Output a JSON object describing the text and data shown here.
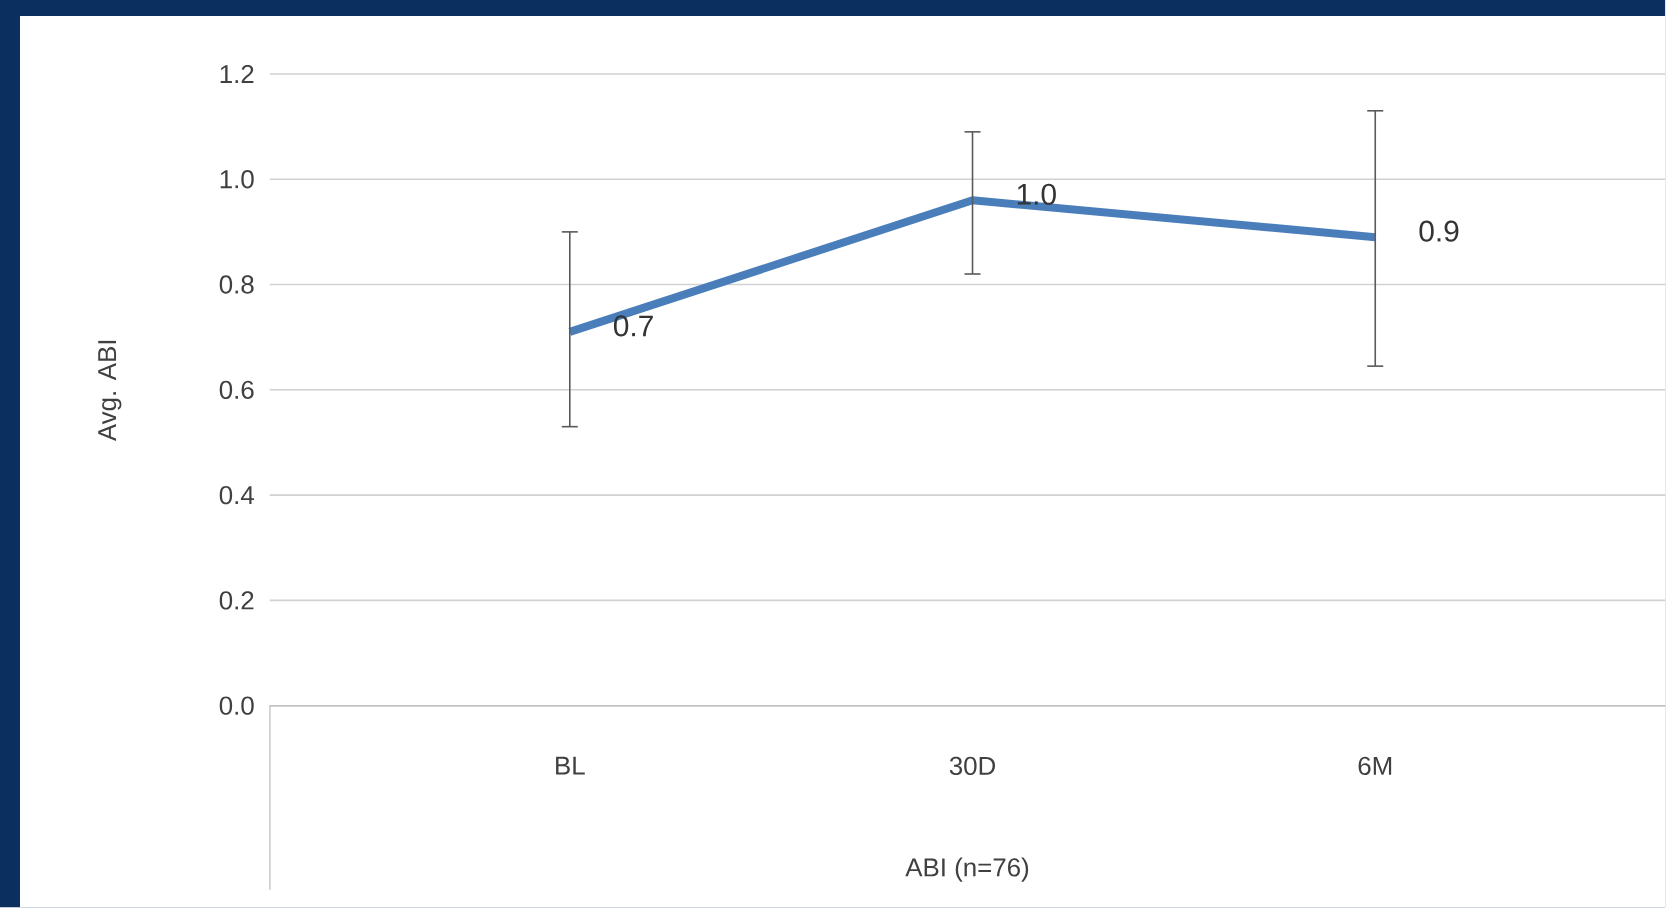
{
  "chart_data": {
    "type": "line",
    "xlabel": "ABI (n=76)",
    "ylabel": "Avg. ABI",
    "categories": [
      "BL",
      "30D",
      "6M"
    ],
    "series": [
      {
        "color": "#4a7ebb",
        "values": [
          0.71,
          0.96,
          0.89
        ],
        "errors": [
          [
            0.53,
            0.9
          ],
          [
            0.82,
            1.09
          ],
          [
            0.645,
            1.13
          ]
        ],
        "value_labels": [
          "0.7",
          "1.0",
          "0.9"
        ]
      }
    ],
    "ylim": [
      0,
      1.2
    ],
    "yticks": [
      {
        "value": 0,
        "label": "0.0"
      },
      {
        "value": 0.2,
        "label": "0.2"
      },
      {
        "value": 0.4,
        "label": "0.4"
      },
      {
        "value": 0.6,
        "label": "0.6"
      },
      {
        "value": 0.8,
        "label": "0.8"
      },
      {
        "value": 1.0,
        "label": "1.0"
      },
      {
        "value": 1.2,
        "label": "1.2"
      }
    ],
    "grid": "y"
  }
}
